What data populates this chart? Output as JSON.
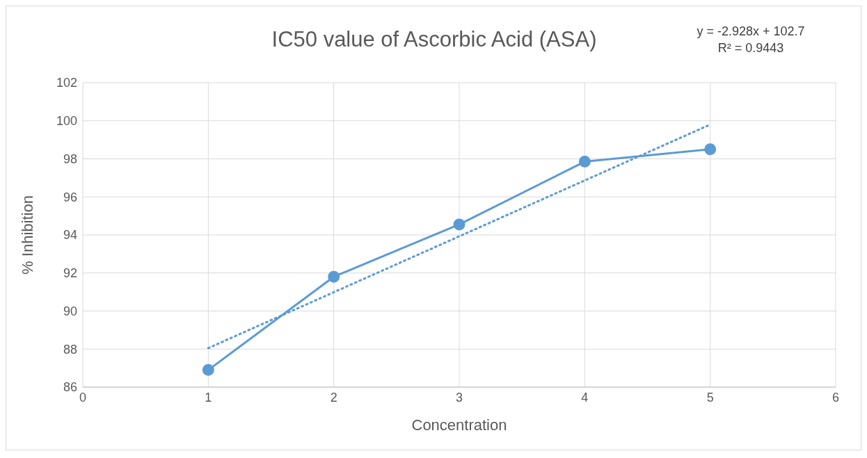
{
  "chart_data": {
    "type": "line",
    "title": "IC50 value of Ascorbic Acid (ASA)",
    "xlabel": "Concentration",
    "ylabel": "% Inhibition",
    "annotations": [
      "y = -2.928x + 102.7",
      "R² = 0.9443"
    ],
    "x": [
      1,
      2,
      3,
      4,
      5
    ],
    "series": [
      {
        "color": "#5b9bd5",
        "values": [
          86.9,
          91.8,
          94.55,
          97.85,
          98.5
        ],
        "marker": "circle",
        "line_style": "solid"
      },
      {
        "type": "line",
        "x": [
          1,
          5
        ],
        "color": "#5b9bd5",
        "values": [
          88.05,
          99.8
        ],
        "marker": "none",
        "line_style": "dotted"
      }
    ],
    "xlim": [
      0,
      6
    ],
    "xticks": [
      0,
      1,
      2,
      3,
      4,
      5,
      6
    ],
    "ylim": [
      86,
      102
    ],
    "yticks": [
      86,
      88,
      90,
      92,
      94,
      96,
      98,
      100,
      102
    ],
    "grid": true
  }
}
